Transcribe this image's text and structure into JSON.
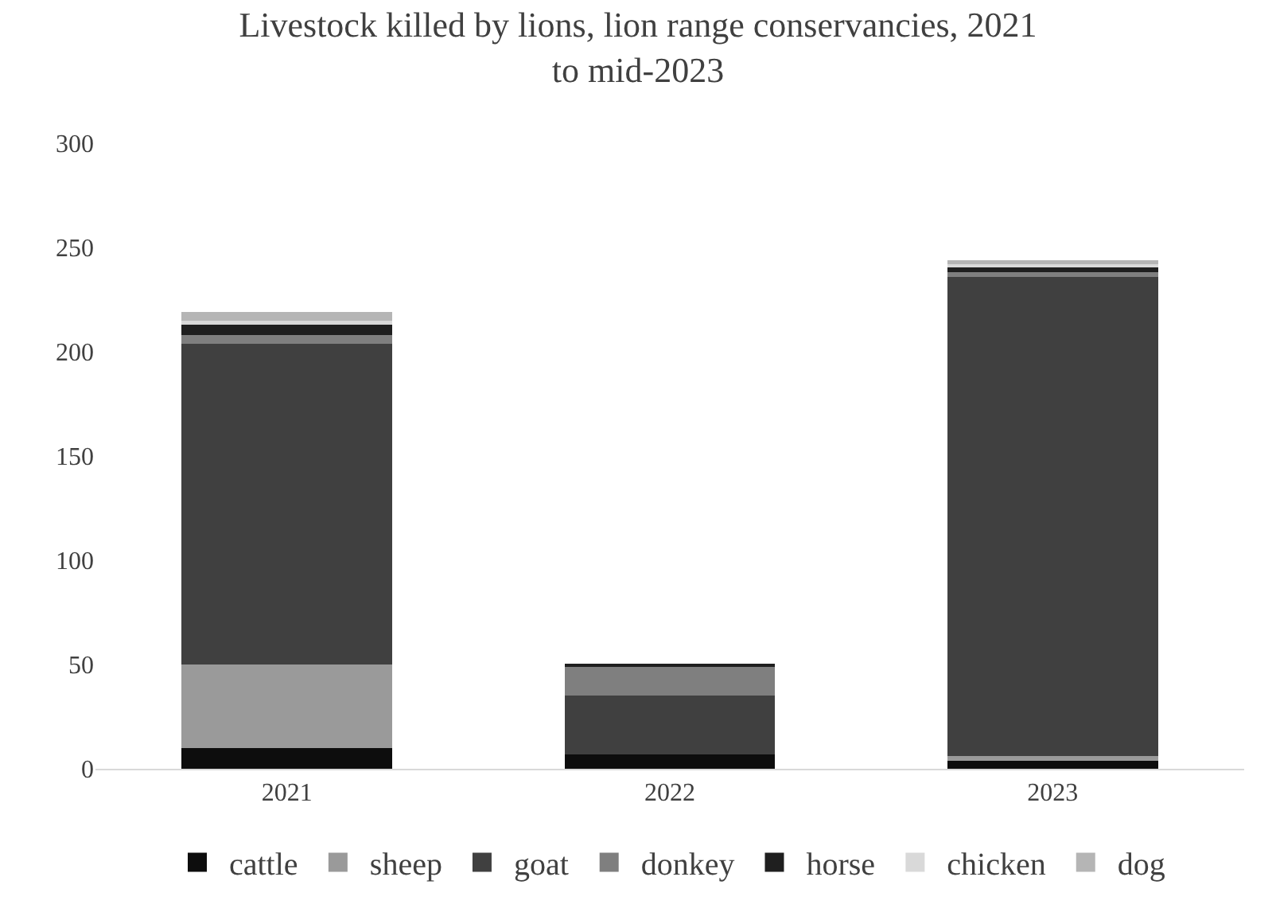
{
  "chart_data": {
    "type": "bar",
    "title": "Livestock killed by lions, lion range conservancies, 2021 to mid-2023",
    "categories": [
      "2021",
      "2022",
      "2023"
    ],
    "stacked": true,
    "ylim": [
      0,
      300
    ],
    "yticks": [
      0,
      50,
      100,
      150,
      200,
      250,
      300
    ],
    "grid": false,
    "legend": "bottom",
    "series": [
      {
        "name": "cattle",
        "color": "#0d0d0d",
        "values": [
          10,
          7,
          4
        ]
      },
      {
        "name": "sheep",
        "color": "#9a9a9a",
        "values": [
          40,
          0,
          2
        ]
      },
      {
        "name": "goat",
        "color": "#404040",
        "values": [
          154,
          28,
          230
        ]
      },
      {
        "name": "donkey",
        "color": "#7f7f7f",
        "values": [
          4,
          14,
          2
        ]
      },
      {
        "name": "horse",
        "color": "#1f1f1f",
        "values": [
          5,
          1,
          3
        ]
      },
      {
        "name": "chicken",
        "color": "#d9d9d9",
        "values": [
          2,
          0,
          1
        ]
      },
      {
        "name": "dog",
        "color": "#b5b5b5",
        "values": [
          4,
          0,
          2
        ]
      }
    ]
  }
}
